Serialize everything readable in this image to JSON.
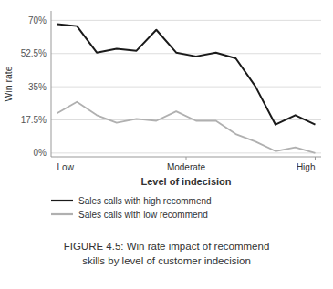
{
  "chart_data": {
    "type": "line",
    "x": [
      0,
      1,
      2,
      3,
      4,
      5,
      6,
      7,
      8,
      9,
      10,
      11,
      12,
      13
    ],
    "xlim": [
      -0.3,
      13.3
    ],
    "xticks": [
      {
        "value": 0,
        "label": "Low"
      },
      {
        "value": 6.5,
        "label": "Moderate"
      },
      {
        "value": 13,
        "label": "High"
      }
    ],
    "ylim": [
      -2,
      75
    ],
    "yticks": [
      {
        "value": 0,
        "label": "0%"
      },
      {
        "value": 17.5,
        "label": "17.5%"
      },
      {
        "value": 35,
        "label": "35%"
      },
      {
        "value": 52.5,
        "label": "52.5%"
      },
      {
        "value": 70,
        "label": "70%"
      }
    ],
    "xlabel": "Level of indecision",
    "ylabel": "Win rate",
    "grid": true,
    "legend": "bottom",
    "series": [
      {
        "name": "Sales calls with high recommend",
        "color": "#1a1a1a",
        "values": [
          68,
          67,
          53,
          55,
          54,
          65,
          53,
          51,
          53,
          50,
          35,
          15,
          20,
          15
        ]
      },
      {
        "name": "Sales calls with low recommend",
        "color": "#b0b0b0",
        "values": [
          21,
          27,
          20,
          16,
          18,
          17,
          22,
          17,
          17,
          10,
          6,
          1,
          3,
          0
        ]
      }
    ],
    "annotations": [
      "FIGURE 4.5: Win rate impact of recommend",
      "skills by level of customer indecision"
    ]
  }
}
